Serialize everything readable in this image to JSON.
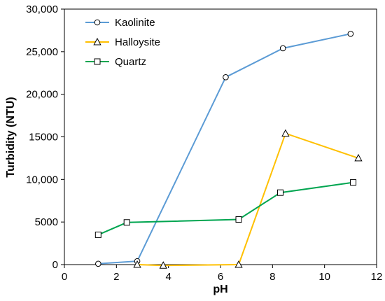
{
  "chart_data": {
    "type": "line",
    "xlabel": "pH",
    "ylabel": "Turbidity (NTU)",
    "xlim": [
      0,
      12
    ],
    "ylim": [
      0,
      30000
    ],
    "x_ticks": [
      0,
      2,
      4,
      6,
      8,
      10,
      12
    ],
    "x_tick_labels": [
      "0",
      "2",
      "4",
      "6",
      "8",
      "10",
      "12"
    ],
    "y_ticks": [
      0,
      5000,
      10000,
      15000,
      20000,
      25000,
      30000
    ],
    "y_tick_labels": [
      "0",
      "5000",
      "10,000",
      "15000",
      "20,000",
      "25,000",
      "30,000"
    ],
    "grid": false,
    "legend_position": "top-left",
    "series": [
      {
        "name": "Kaolinite",
        "marker": "circle",
        "color": "#5b9bd5",
        "points": [
          [
            1.3,
            100
          ],
          [
            2.8,
            400
          ],
          [
            6.2,
            22000
          ],
          [
            8.4,
            25400
          ],
          [
            11.0,
            27100
          ]
        ]
      },
      {
        "name": "Halloysite",
        "marker": "triangle",
        "color": "#ffc000",
        "points": [
          [
            2.8,
            0
          ],
          [
            3.8,
            -100
          ],
          [
            6.7,
            0
          ],
          [
            8.5,
            15400
          ],
          [
            11.3,
            12500
          ]
        ]
      },
      {
        "name": "Quartz",
        "marker": "square",
        "color": "#00a550",
        "points": [
          [
            1.3,
            3500
          ],
          [
            2.4,
            4950
          ],
          [
            6.7,
            5300
          ],
          [
            8.3,
            8450
          ],
          [
            11.1,
            9650
          ]
        ]
      }
    ]
  }
}
